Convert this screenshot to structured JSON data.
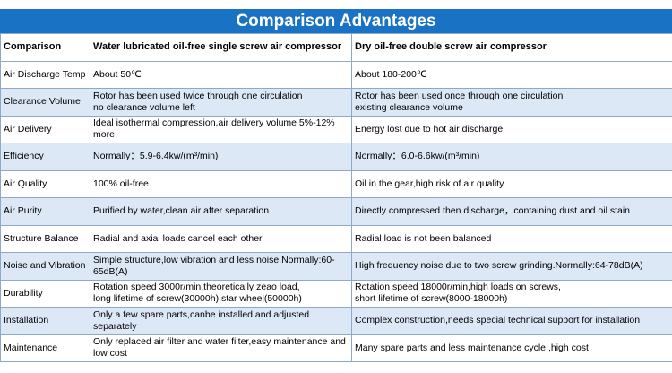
{
  "title": "Comparison Advantages",
  "table": {
    "header": [
      "Comparison",
      "Water lubricated oil-free single screw air compressor",
      "Dry oil-free double screw air compressor"
    ],
    "rows": [
      [
        [
          "Air Discharge Temp"
        ],
        [
          "About 50℃"
        ],
        [
          "About 180-200℃"
        ]
      ],
      [
        [
          "Clearance Volume"
        ],
        [
          "Rotor has been used twice through one circulation",
          "no clearance volume left"
        ],
        [
          "Rotor has been used once through one circulation",
          "existing clearance volume"
        ]
      ],
      [
        [
          "Air Delivery"
        ],
        [
          "Ideal isothermal compression,air delivery volume 5%-12% more"
        ],
        [
          "Energy lost due to hot air discharge"
        ]
      ],
      [
        [
          "Efficiency"
        ],
        [
          "Normally：5.9-6.4kw/(m³/min)"
        ],
        [
          "Normally：6.0-6.6kw/(m³/min)"
        ]
      ],
      [
        [
          "Air Quality"
        ],
        [
          "100% oil-free"
        ],
        [
          "Oil in the gear,high risk of air quality"
        ]
      ],
      [
        [
          "Air Purity"
        ],
        [
          "Purified by water,clean air after separation"
        ],
        [
          "Directly compressed then discharge，containing dust and oil stain"
        ]
      ],
      [
        [
          "Structure Balance"
        ],
        [
          "Radial and axial loads cancel  each other"
        ],
        [
          "Radial load is not been balanced"
        ]
      ],
      [
        [
          "Noise and Vibration"
        ],
        [
          "Simple structure,low vibration and less noise,Normally:60-65dB(A)"
        ],
        [
          "High frequency noise due to two screw grinding.Normally:64-78dB(A)"
        ]
      ],
      [
        [
          "Durability"
        ],
        [
          "Rotation speed 3000r/min,theoretically zeao load,",
          "long lifetime of screw(30000h),star wheel(50000h)"
        ],
        [
          "Rotation speed 18000r/min,high loads on screws,",
          "short lifetime of screw(8000-18000h)"
        ]
      ],
      [
        [
          "Installation"
        ],
        [
          "Only a few spare parts,canbe installed and adjusted separately"
        ],
        [
          "Complex construction,needs special technical support for installation"
        ]
      ],
      [
        [
          "Maintenance"
        ],
        [
          "Only replaced air filter and water filter,easy maintenance and low cost"
        ],
        [
          "Many spare parts and less maintenance cycle ,high cost"
        ]
      ]
    ]
  }
}
